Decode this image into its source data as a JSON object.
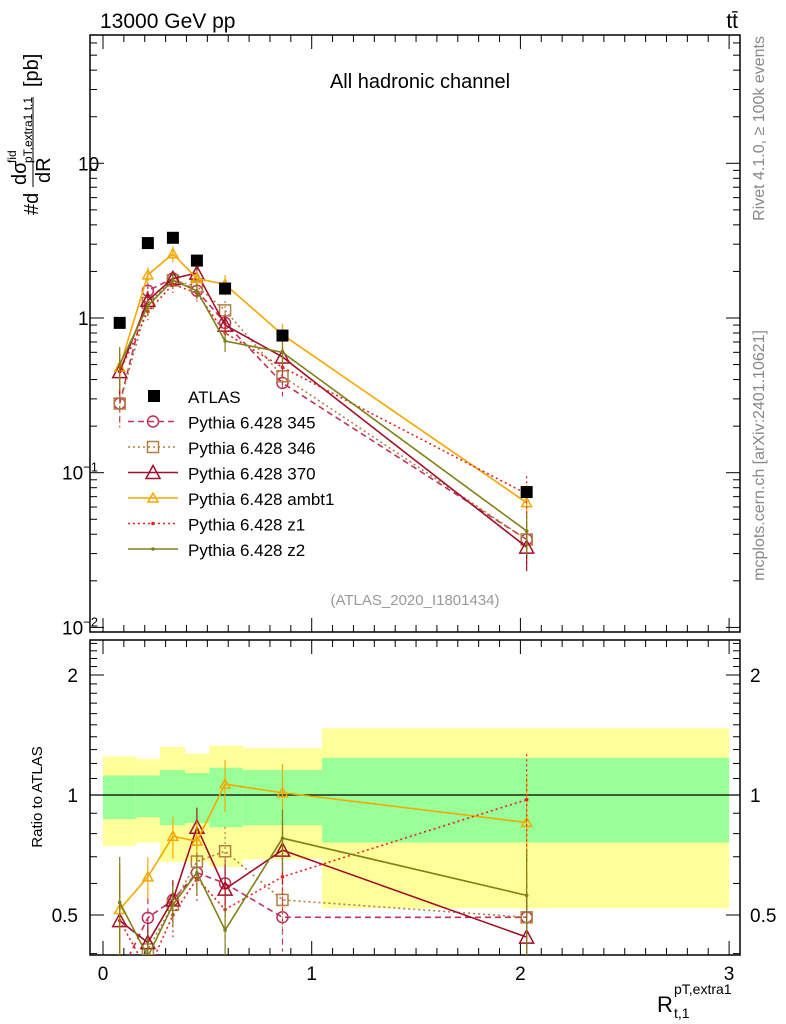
{
  "header": {
    "energy_label": "13000 GeV pp",
    "process_label": "tt̄",
    "channel_label": "All hadronic channel",
    "analysis_id": "(ATLAS_2020_I1801434)",
    "rivet_label": "Rivet 4.1.0, ≥ 100k events",
    "source_label": "mcplots.cern.ch [arXiv:2401.10621]"
  },
  "chart_data": [
    {
      "type": "scatter",
      "title": "All hadronic channel",
      "ylabel": "#d dσ^fid / dR [pb]",
      "ylabel_parts": {
        "prefix": "#d",
        "numerator": "dσ",
        "sup": "fid",
        "sub": "pT,extra1 t,1",
        "denominator": "dR",
        "unit": "[pb]"
      },
      "yscale": "log",
      "ylim": [
        0.0093,
        67
      ],
      "xlim": [
        -0.062,
        3.05
      ],
      "yticks": [
        {
          "v": 0.01,
          "base": "10",
          "exp": "−2"
        },
        {
          "v": 0.1,
          "base": "10",
          "exp": "−1"
        },
        {
          "v": 1,
          "base": "1",
          "exp": ""
        },
        {
          "v": 10,
          "base": "10",
          "exp": ""
        }
      ],
      "legend_position": "center-left",
      "bin_edges": [
        0,
        0.157,
        0.273,
        0.393,
        0.51,
        0.67,
        1.05,
        3.0
      ],
      "x": [
        0.08,
        0.215,
        0.335,
        0.45,
        0.585,
        0.86,
        2.03
      ],
      "reference": {
        "name": "ATLAS",
        "color": "#000000",
        "values": [
          0.93,
          3.05,
          3.3,
          2.35,
          1.55,
          0.77,
          0.075
        ]
      },
      "series": [
        {
          "name": "Pythia 6.428 345",
          "color": "#c0305a",
          "dash": "6,4",
          "marker": "circle",
          "values": [
            0.28,
            1.5,
            1.8,
            1.5,
            0.93,
            0.38,
            0.037
          ],
          "rel_err": [
            0.3,
            0.12,
            0.12,
            0.12,
            0.15,
            0.18,
            0.3
          ]
        },
        {
          "name": "Pythia 6.428 346",
          "color": "#b08040",
          "dash": "2,3",
          "marker": "square",
          "values": [
            0.28,
            1.25,
            1.75,
            1.6,
            1.12,
            0.42,
            0.037
          ],
          "rel_err": [
            0.3,
            0.12,
            0.12,
            0.12,
            0.15,
            0.18,
            0.3
          ]
        },
        {
          "name": "Pythia 6.428 370",
          "color": "#a01028",
          "dash": "",
          "marker": "triangle",
          "values": [
            0.45,
            1.3,
            1.8,
            1.95,
            0.9,
            0.56,
            0.033
          ],
          "rel_err": [
            0.3,
            0.12,
            0.12,
            0.12,
            0.15,
            0.18,
            0.3
          ]
        },
        {
          "name": "Pythia 6.428 ambt1",
          "color": "#f5a800",
          "dash": "",
          "marker": "triangle-small",
          "values": [
            0.48,
            1.9,
            2.6,
            1.8,
            1.65,
            0.78,
            0.064
          ],
          "rel_err": [
            0.3,
            0.12,
            0.12,
            0.12,
            0.15,
            0.18,
            0.3
          ]
        },
        {
          "name": "Pythia 6.428 z1",
          "color": "#e82020",
          "dash": "2,3",
          "marker": "dot",
          "values": [
            0.45,
            1.1,
            1.65,
            1.45,
            0.8,
            0.48,
            0.073
          ],
          "rel_err": [
            0.3,
            0.12,
            0.12,
            0.12,
            0.15,
            0.18,
            0.3
          ]
        },
        {
          "name": "Pythia 6.428 z2",
          "color": "#808018",
          "dash": "",
          "marker": "dot",
          "values": [
            0.5,
            1.2,
            1.75,
            1.5,
            0.71,
            0.6,
            0.042
          ],
          "rel_err": [
            0.3,
            0.12,
            0.12,
            0.12,
            0.15,
            0.18,
            0.3
          ]
        }
      ]
    },
    {
      "type": "scatter",
      "ylabel": "Ratio to ATLAS",
      "xlabel": "R_{t,1}^{pT,extra1}",
      "xlabel_parts": {
        "base": "R",
        "sup": "pT,extra1",
        "sub": "t,1"
      },
      "yscale": "log",
      "ylim": [
        0.397,
        2.45
      ],
      "yticks": [
        {
          "v": 0.5,
          "label": "0.5"
        },
        {
          "v": 1,
          "label": "1"
        },
        {
          "v": 2,
          "label": "2"
        }
      ],
      "xticks": [
        {
          "v": 0,
          "label": "0"
        },
        {
          "v": 1,
          "label": "1"
        },
        {
          "v": 2,
          "label": "2"
        },
        {
          "v": 3,
          "label": "3"
        }
      ],
      "band_inner": {
        "color": "#99ff99",
        "lo": [
          0.87,
          0.88,
          0.84,
          0.85,
          0.83,
          0.84,
          0.76
        ],
        "hi": [
          1.12,
          1.12,
          1.155,
          1.135,
          1.17,
          1.155,
          1.24
        ]
      },
      "band_outer": {
        "color": "#ffff99",
        "lo": [
          0.745,
          0.76,
          0.68,
          0.68,
          0.66,
          0.69,
          0.52
        ],
        "hi": [
          1.25,
          1.23,
          1.32,
          1.27,
          1.33,
          1.31,
          1.47
        ]
      },
      "ratio_of": "series values / reference values"
    }
  ]
}
